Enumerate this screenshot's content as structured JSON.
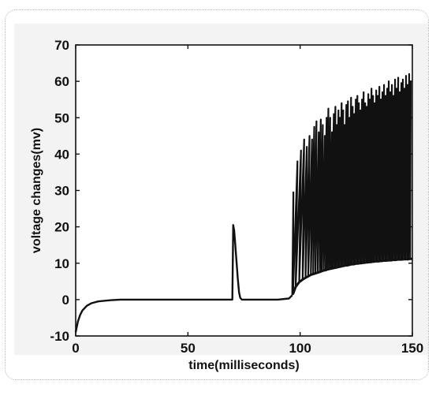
{
  "chart_data": {
    "type": "line",
    "title": "",
    "xlabel": "time(milliseconds)",
    "ylabel": "voltage changes(mv)",
    "xlim": [
      0,
      150
    ],
    "ylim": [
      -10,
      70
    ],
    "x_ticks": [
      0,
      50,
      100,
      150
    ],
    "y_ticks": [
      -10,
      0,
      10,
      20,
      30,
      40,
      50,
      60,
      70
    ],
    "grid": false,
    "legend": "none",
    "line_color": "#111111",
    "series": [
      {
        "x": [
          0,
          1,
          2,
          3,
          5,
          7,
          10,
          13,
          16,
          20,
          25,
          30,
          40,
          50,
          60,
          69.8,
          70.2,
          70.6,
          71,
          71.6,
          72.2,
          72.8,
          73.3,
          74,
          75,
          80,
          90,
          95,
          96.5
        ],
        "y": [
          -9,
          -6,
          -4.2,
          -3,
          -1.7,
          -1,
          -0.5,
          -0.3,
          -0.15,
          0,
          0,
          0,
          0,
          0,
          0,
          0,
          20.5,
          19,
          16,
          11,
          6,
          2,
          0.5,
          0,
          0,
          0,
          0,
          0.3,
          1.2
        ]
      }
    ],
    "spikes": {
      "peaks": [
        [
          97.0,
          29.5
        ],
        [
          98.8,
          38.0
        ],
        [
          100.4,
          41.0
        ],
        [
          101.8,
          44.0
        ],
        [
          103.0,
          42.0
        ],
        [
          104.2,
          45.0
        ],
        [
          105.3,
          44.0
        ],
        [
          106.3,
          47.5
        ],
        [
          107.3,
          49.0
        ],
        [
          108.3,
          46.0
        ],
        [
          109.2,
          49.5
        ],
        [
          110.1,
          48.0
        ],
        [
          111.0,
          45.0
        ],
        [
          111.8,
          50.0
        ],
        [
          112.6,
          52.5
        ],
        [
          113.4,
          50.0
        ],
        [
          114.2,
          46.0
        ],
        [
          115.0,
          51.0
        ],
        [
          115.7,
          53.0
        ],
        [
          116.4,
          48.0
        ],
        [
          117.1,
          52.0
        ],
        [
          117.8,
          50.0
        ],
        [
          118.5,
          54.0
        ],
        [
          119.2,
          52.0
        ],
        [
          119.9,
          48.0
        ],
        [
          120.6,
          53.5
        ],
        [
          121.3,
          54.5
        ],
        [
          122.0,
          50.0
        ],
        [
          122.7,
          55.5
        ],
        [
          123.4,
          53.0
        ],
        [
          124.1,
          51.0
        ],
        [
          124.8,
          55.0
        ],
        [
          125.5,
          56.0
        ],
        [
          126.2,
          54.0
        ],
        [
          126.9,
          52.0
        ],
        [
          127.6,
          55.0
        ],
        [
          128.3,
          57.0
        ],
        [
          129.0,
          54.0
        ],
        [
          129.7,
          53.0
        ],
        [
          130.4,
          56.5
        ],
        [
          131.1,
          55.0
        ],
        [
          131.8,
          58.0
        ],
        [
          132.5,
          56.0
        ],
        [
          133.2,
          54.0
        ],
        [
          133.9,
          57.5
        ],
        [
          134.6,
          56.0
        ],
        [
          135.3,
          58.5
        ],
        [
          136.0,
          55.0
        ],
        [
          136.7,
          57.0
        ],
        [
          137.4,
          59.0
        ],
        [
          138.1,
          56.0
        ],
        [
          138.8,
          58.0
        ],
        [
          139.5,
          60.0
        ],
        [
          140.2,
          57.0
        ],
        [
          140.9,
          59.0
        ],
        [
          141.6,
          56.0
        ],
        [
          142.3,
          60.5
        ],
        [
          143.0,
          58.0
        ],
        [
          143.7,
          61.0
        ],
        [
          144.4,
          57.0
        ],
        [
          145.1,
          59.5
        ],
        [
          145.8,
          60.5
        ],
        [
          146.5,
          58.0
        ],
        [
          147.2,
          61.5
        ],
        [
          147.9,
          59.0
        ],
        [
          148.6,
          62.0
        ],
        [
          149.3,
          60.0
        ]
      ],
      "troughs": [
        [
          96.8,
          1.5
        ],
        [
          98.0,
          3.5
        ],
        [
          99.6,
          4.8
        ],
        [
          101.1,
          5.5
        ],
        [
          102.4,
          6.0
        ],
        [
          103.6,
          6.4
        ],
        [
          104.8,
          6.8
        ],
        [
          105.8,
          7.0
        ],
        [
          106.8,
          7.2
        ],
        [
          107.8,
          7.4
        ],
        [
          108.8,
          7.6
        ],
        [
          109.6,
          7.8
        ],
        [
          110.5,
          8.0
        ],
        [
          111.4,
          8.1
        ],
        [
          112.2,
          8.3
        ],
        [
          113.0,
          8.4
        ],
        [
          113.8,
          8.5
        ],
        [
          114.6,
          8.6
        ],
        [
          115.4,
          8.7
        ],
        [
          116.0,
          8.8
        ],
        [
          116.8,
          8.9
        ],
        [
          117.4,
          9.0
        ],
        [
          118.2,
          9.1
        ],
        [
          118.8,
          9.2
        ],
        [
          119.6,
          9.3
        ],
        [
          120.2,
          9.4
        ],
        [
          121.0,
          9.4
        ],
        [
          121.6,
          9.5
        ],
        [
          122.4,
          9.6
        ],
        [
          123.0,
          9.7
        ],
        [
          123.8,
          9.7
        ],
        [
          124.4,
          9.8
        ],
        [
          125.2,
          9.9
        ],
        [
          125.8,
          9.9
        ],
        [
          126.6,
          10.0
        ],
        [
          127.2,
          10.0
        ],
        [
          128.0,
          10.1
        ],
        [
          128.6,
          10.1
        ],
        [
          129.4,
          10.2
        ],
        [
          130.0,
          10.2
        ],
        [
          130.8,
          10.3
        ],
        [
          131.4,
          10.3
        ],
        [
          132.2,
          10.4
        ],
        [
          132.8,
          10.4
        ],
        [
          133.6,
          10.5
        ],
        [
          134.2,
          10.5
        ],
        [
          135.0,
          10.5
        ],
        [
          135.6,
          10.6
        ],
        [
          136.4,
          10.6
        ],
        [
          137.0,
          10.7
        ],
        [
          137.8,
          10.7
        ],
        [
          138.4,
          10.7
        ],
        [
          139.2,
          10.8
        ],
        [
          139.8,
          10.8
        ],
        [
          140.6,
          10.8
        ],
        [
          141.2,
          10.9
        ],
        [
          142.0,
          10.9
        ],
        [
          142.6,
          10.9
        ],
        [
          143.4,
          11.0
        ],
        [
          144.0,
          11.0
        ],
        [
          144.8,
          11.0
        ],
        [
          145.4,
          11.0
        ],
        [
          146.2,
          11.1
        ],
        [
          146.8,
          11.1
        ],
        [
          147.6,
          11.1
        ],
        [
          148.2,
          11.1
        ],
        [
          149.0,
          11.2
        ],
        [
          150.0,
          11.2
        ]
      ]
    }
  }
}
